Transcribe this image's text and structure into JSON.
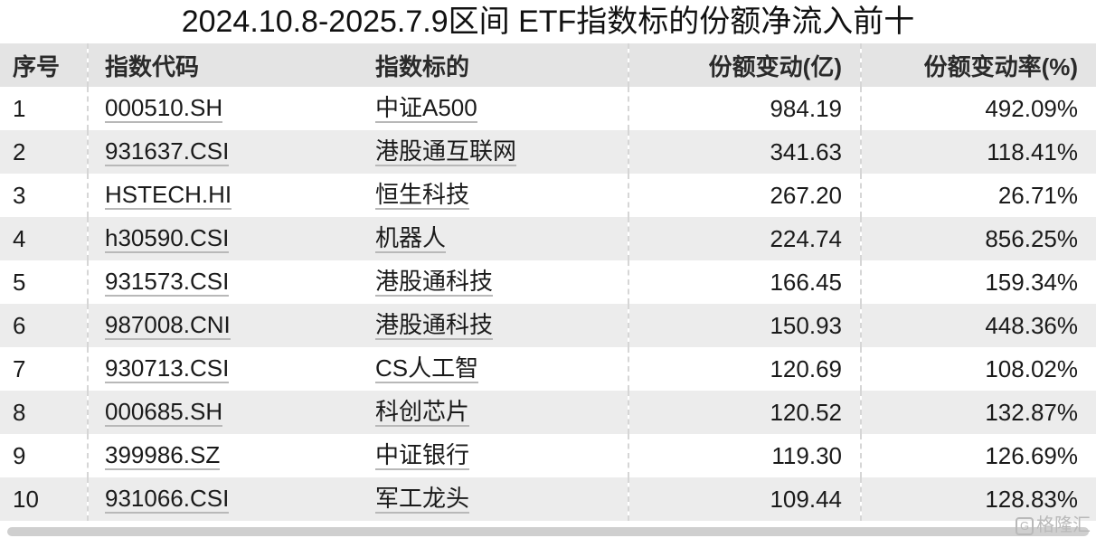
{
  "title": "2024.10.8-2025.7.9区间 ETF指数标的份额净流入前十",
  "table": {
    "headers": [
      "序号",
      "指数代码",
      "指数标的",
      "份额变动(亿)",
      "份额变动率(%)"
    ],
    "rows": [
      {
        "rank": "1",
        "code": "000510.SH",
        "name": "中证A500",
        "change": "984.19",
        "rate": "492.09%"
      },
      {
        "rank": "2",
        "code": "931637.CSI",
        "name": "港股通互联网",
        "change": "341.63",
        "rate": "118.41%"
      },
      {
        "rank": "3",
        "code": "HSTECH.HI",
        "name": "恒生科技",
        "change": "267.20",
        "rate": "26.71%"
      },
      {
        "rank": "4",
        "code": "h30590.CSI",
        "name": "机器人",
        "change": "224.74",
        "rate": "856.25%"
      },
      {
        "rank": "5",
        "code": "931573.CSI",
        "name": "港股通科技",
        "change": "166.45",
        "rate": "159.34%"
      },
      {
        "rank": "6",
        "code": "987008.CNI",
        "name": "港股通科技",
        "change": "150.93",
        "rate": "448.36%"
      },
      {
        "rank": "7",
        "code": "930713.CSI",
        "name": "CS人工智",
        "change": "120.69",
        "rate": "108.02%"
      },
      {
        "rank": "8",
        "code": "000685.SH",
        "name": "科创芯片",
        "change": "120.52",
        "rate": "132.87%"
      },
      {
        "rank": "9",
        "code": "399986.SZ",
        "name": "中证银行",
        "change": "119.30",
        "rate": "126.69%"
      },
      {
        "rank": "10",
        "code": "931066.CSI",
        "name": "军工龙头",
        "change": "109.44",
        "rate": "128.83%"
      }
    ]
  },
  "watermark": {
    "logo": "G",
    "text": "格隆汇"
  },
  "colors": {
    "header_bg": "#e4e4e4",
    "stripe_bg": "#ececec",
    "text": "#1a1a1a"
  }
}
